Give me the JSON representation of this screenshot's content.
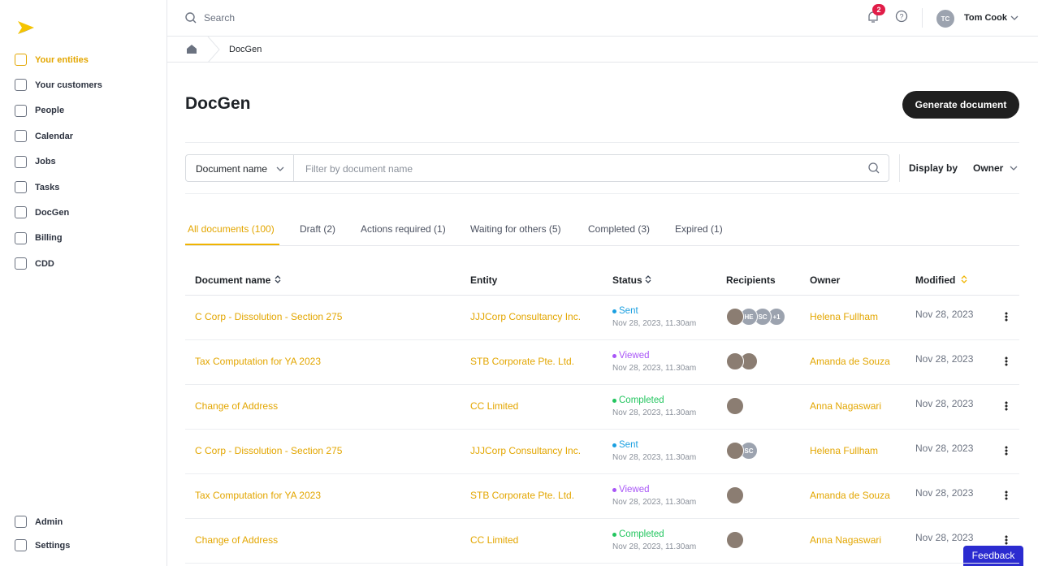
{
  "sidebar": {
    "items": [
      "Your entities",
      "Your customers",
      "People",
      "Calendar",
      "Jobs",
      "Tasks",
      "DocGen",
      "Billing",
      "CDD"
    ],
    "active": 0,
    "bottom": [
      "Admin",
      "Settings"
    ]
  },
  "topbar": {
    "search": "Search",
    "notifications": "2",
    "initials": "TC",
    "user": "Tom Cook"
  },
  "breadcrumb": "DocGen",
  "page": {
    "title": "DocGen",
    "button": "Generate document"
  },
  "filter": {
    "field": "Document name",
    "placeholder": "Filter by document name",
    "display_label": "Display by",
    "display_value": "Owner"
  },
  "tabs": {
    "items": [
      "All documents (100)",
      "Draft (2)",
      "Actions required (1)",
      "Waiting for others (5)",
      "Completed (3)",
      "Expired (1)"
    ],
    "active": 0
  },
  "table": {
    "headers": [
      "Document name",
      "Entity",
      "Status",
      "Recipients",
      "Owner",
      "Modified"
    ],
    "rows": [
      {
        "name": "C Corp - Dissolution - Section 275",
        "entity": "JJJCorp Consultancy Inc.",
        "status": "Sent",
        "status_color": "#1a9fe0",
        "date": "Nov 28, 2023, 11.30am",
        "recipients": [
          null,
          "HE",
          "SC",
          "+1"
        ],
        "owner": "Helena Fullham",
        "modified": "Nov 28, 2023"
      },
      {
        "name": "Tax Computation for YA 2023",
        "entity": "STB Corporate Pte. Ltd.",
        "status": "Viewed",
        "status_color": "#a855f7",
        "date": "Nov 28, 2023, 11.30am",
        "recipients": [
          null,
          null
        ],
        "owner": "Amanda de Souza",
        "modified": "Nov 28, 2023"
      },
      {
        "name": "Change of Address",
        "entity": "CC Limited",
        "status": "Completed",
        "status_color": "#22c55e",
        "date": "Nov 28, 2023, 11.30am",
        "recipients": [
          null
        ],
        "owner": "Anna Nagaswari",
        "modified": "Nov 28, 2023"
      },
      {
        "name": "C Corp - Dissolution - Section 275",
        "entity": "JJJCorp Consultancy Inc.",
        "status": "Sent",
        "status_color": "#1a9fe0",
        "date": "Nov 28, 2023, 11.30am",
        "recipients": [
          null,
          "SC"
        ],
        "owner": "Helena Fullham",
        "modified": "Nov 28, 2023"
      },
      {
        "name": "Tax Computation for YA 2023",
        "entity": "STB Corporate Pte. Ltd.",
        "status": "Viewed",
        "status_color": "#a855f7",
        "date": "Nov 28, 2023, 11.30am",
        "recipients": [
          null
        ],
        "owner": "Amanda de Souza",
        "modified": "Nov 28, 2023"
      },
      {
        "name": "Change of Address",
        "entity": "CC Limited",
        "status": "Completed",
        "status_color": "#22c55e",
        "date": "Nov 28, 2023, 11.30am",
        "recipients": [
          null
        ],
        "owner": "Anna Nagaswari",
        "modified": "Nov 28, 2023"
      }
    ]
  },
  "feedback": "Feedback"
}
